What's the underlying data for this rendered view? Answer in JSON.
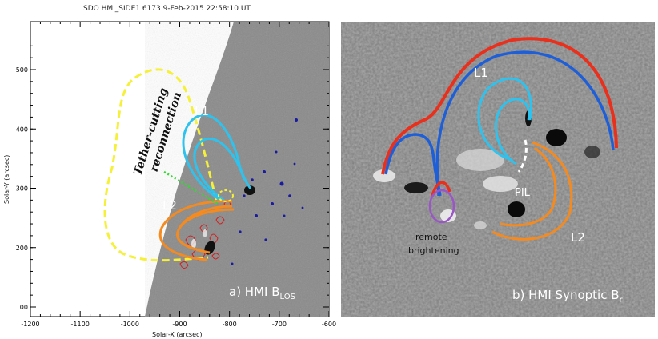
{
  "header": {
    "title": "SDO HMI_SIDE1 6173  9-Feb-2015 22:58:10 UT"
  },
  "left_panel": {
    "caption_main": "a) HMI B",
    "caption_sub": "LOS",
    "xlabel": "Solar-X (arcsec)",
    "ylabel": "Solar-Y (arcsec)",
    "x_ticks": [
      "-1200",
      "-1100",
      "-1000",
      "-900",
      "-800",
      "-700",
      "-600"
    ],
    "y_ticks": [
      "500",
      "400",
      "300",
      "200",
      "100"
    ],
    "annotation_line1": "Tether-cutting",
    "annotation_line2": "reconnection",
    "label_l1": "L1",
    "label_l2": "L2"
  },
  "right_panel": {
    "caption_main": "b) HMI Synoptic B",
    "caption_sub": "r",
    "label_l1": "L1",
    "label_l2": "L2",
    "label_pil": "PIL",
    "label_remote1": "remote",
    "label_remote2": "brightening"
  },
  "colors": {
    "yellow_loop": "#f5f03a",
    "cyan_loop": "#2ec3ee",
    "orange_loop": "#f58a1f",
    "red_loop": "#e8301c",
    "blue_loop": "#1e5fd8",
    "purple_loop": "#9a55c8",
    "green_dots": "#2edc2e"
  }
}
